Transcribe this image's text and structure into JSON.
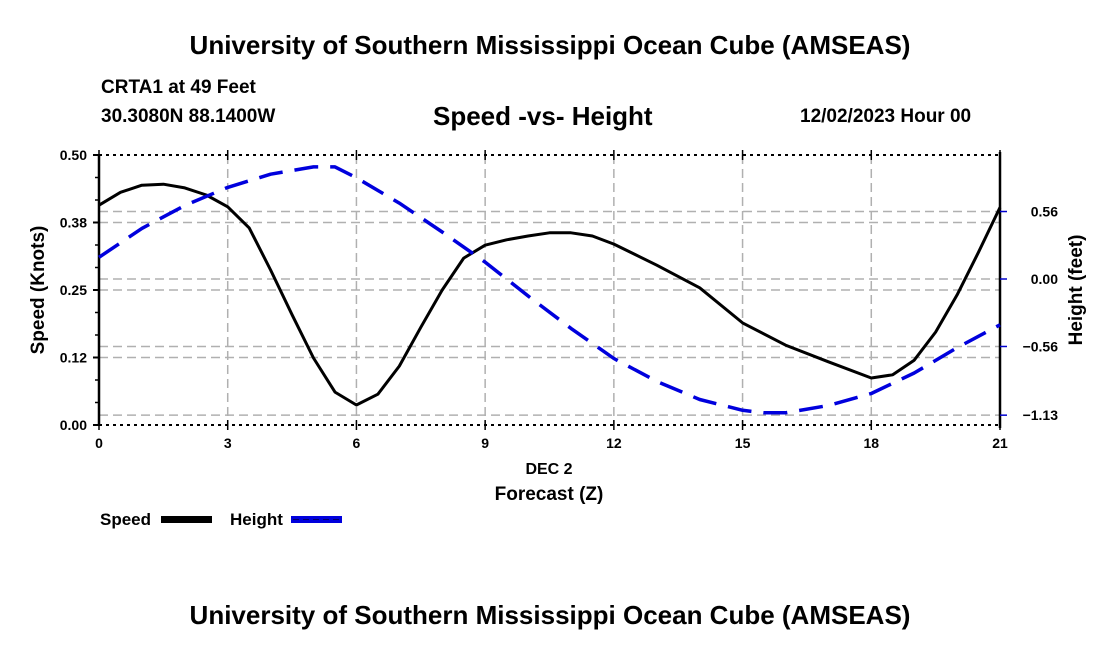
{
  "header": {
    "title": "University of Southern Mississippi Ocean Cube (AMSEAS)",
    "station": "CRTA1 at 49 Feet",
    "coords": "30.3080N  88.1400W",
    "subtitle": "Speed -vs- Height",
    "datetime": "12/02/2023 Hour 00"
  },
  "footer": {
    "title": "University of Southern Mississippi Ocean Cube (AMSEAS)"
  },
  "chart_data": {
    "type": "line",
    "title": "Speed -vs- Height",
    "xlabel": "Forecast (Z)",
    "xlabel_date": "DEC 2",
    "ylabel": "Speed (Knots)",
    "y2label": "Height (feet)",
    "xlim": [
      0,
      21
    ],
    "ylim": [
      0,
      0.5
    ],
    "y2lim": [
      -1.25,
      1.04
    ],
    "x_ticks": [
      0,
      3,
      6,
      9,
      12,
      15,
      18,
      21
    ],
    "x_tick_labels": [
      "0",
      "3",
      "6",
      "9",
      "12",
      "15",
      "18",
      "21"
    ],
    "y_ticks": [
      0,
      0.125,
      0.25,
      0.375,
      0.5
    ],
    "y_tick_labels": [
      "0.00",
      "0.12",
      "0.25",
      "0.38",
      "0.50"
    ],
    "y2_ticks": [
      0.56,
      0.0,
      -0.56,
      -1.13
    ],
    "y2_tick_labels": [
      "0.56",
      "0.00",
      "-0.56",
      "-1.13"
    ],
    "grid": true,
    "legend": "bottom-left",
    "series": [
      {
        "name": "Speed",
        "axis": "left",
        "color": "#000000",
        "style": "solid",
        "x": [
          0,
          0.5,
          1,
          1.5,
          2,
          2.5,
          3,
          3.5,
          4,
          4.5,
          5,
          5.5,
          6,
          6.5,
          7,
          7.5,
          8,
          8.5,
          9,
          9.5,
          10,
          10.5,
          11,
          11.5,
          12,
          13,
          14,
          15,
          16,
          17,
          18,
          18.5,
          19,
          19.5,
          20,
          20.5,
          21
        ],
        "values": [
          0.407,
          0.431,
          0.444,
          0.446,
          0.439,
          0.426,
          0.404,
          0.365,
          0.287,
          0.204,
          0.124,
          0.061,
          0.037,
          0.057,
          0.109,
          0.181,
          0.25,
          0.309,
          0.333,
          0.343,
          0.35,
          0.356,
          0.356,
          0.35,
          0.335,
          0.296,
          0.254,
          0.189,
          0.148,
          0.117,
          0.087,
          0.093,
          0.12,
          0.172,
          0.241,
          0.32,
          0.403
        ]
      },
      {
        "name": "Height",
        "axis": "right",
        "color": "#0000dd",
        "style": "dashed",
        "x": [
          0,
          1,
          2,
          3,
          4,
          5,
          5.5,
          6,
          7,
          8,
          9,
          10,
          11,
          12,
          13,
          14,
          15,
          15.5,
          16,
          17,
          18,
          19,
          20,
          21
        ],
        "values": [
          0.18,
          0.42,
          0.61,
          0.76,
          0.87,
          0.93,
          0.93,
          0.84,
          0.63,
          0.39,
          0.14,
          -0.14,
          -0.41,
          -0.66,
          -0.85,
          -1.0,
          -1.09,
          -1.11,
          -1.11,
          -1.05,
          -0.95,
          -0.78,
          -0.57,
          -0.38
        ]
      }
    ]
  }
}
